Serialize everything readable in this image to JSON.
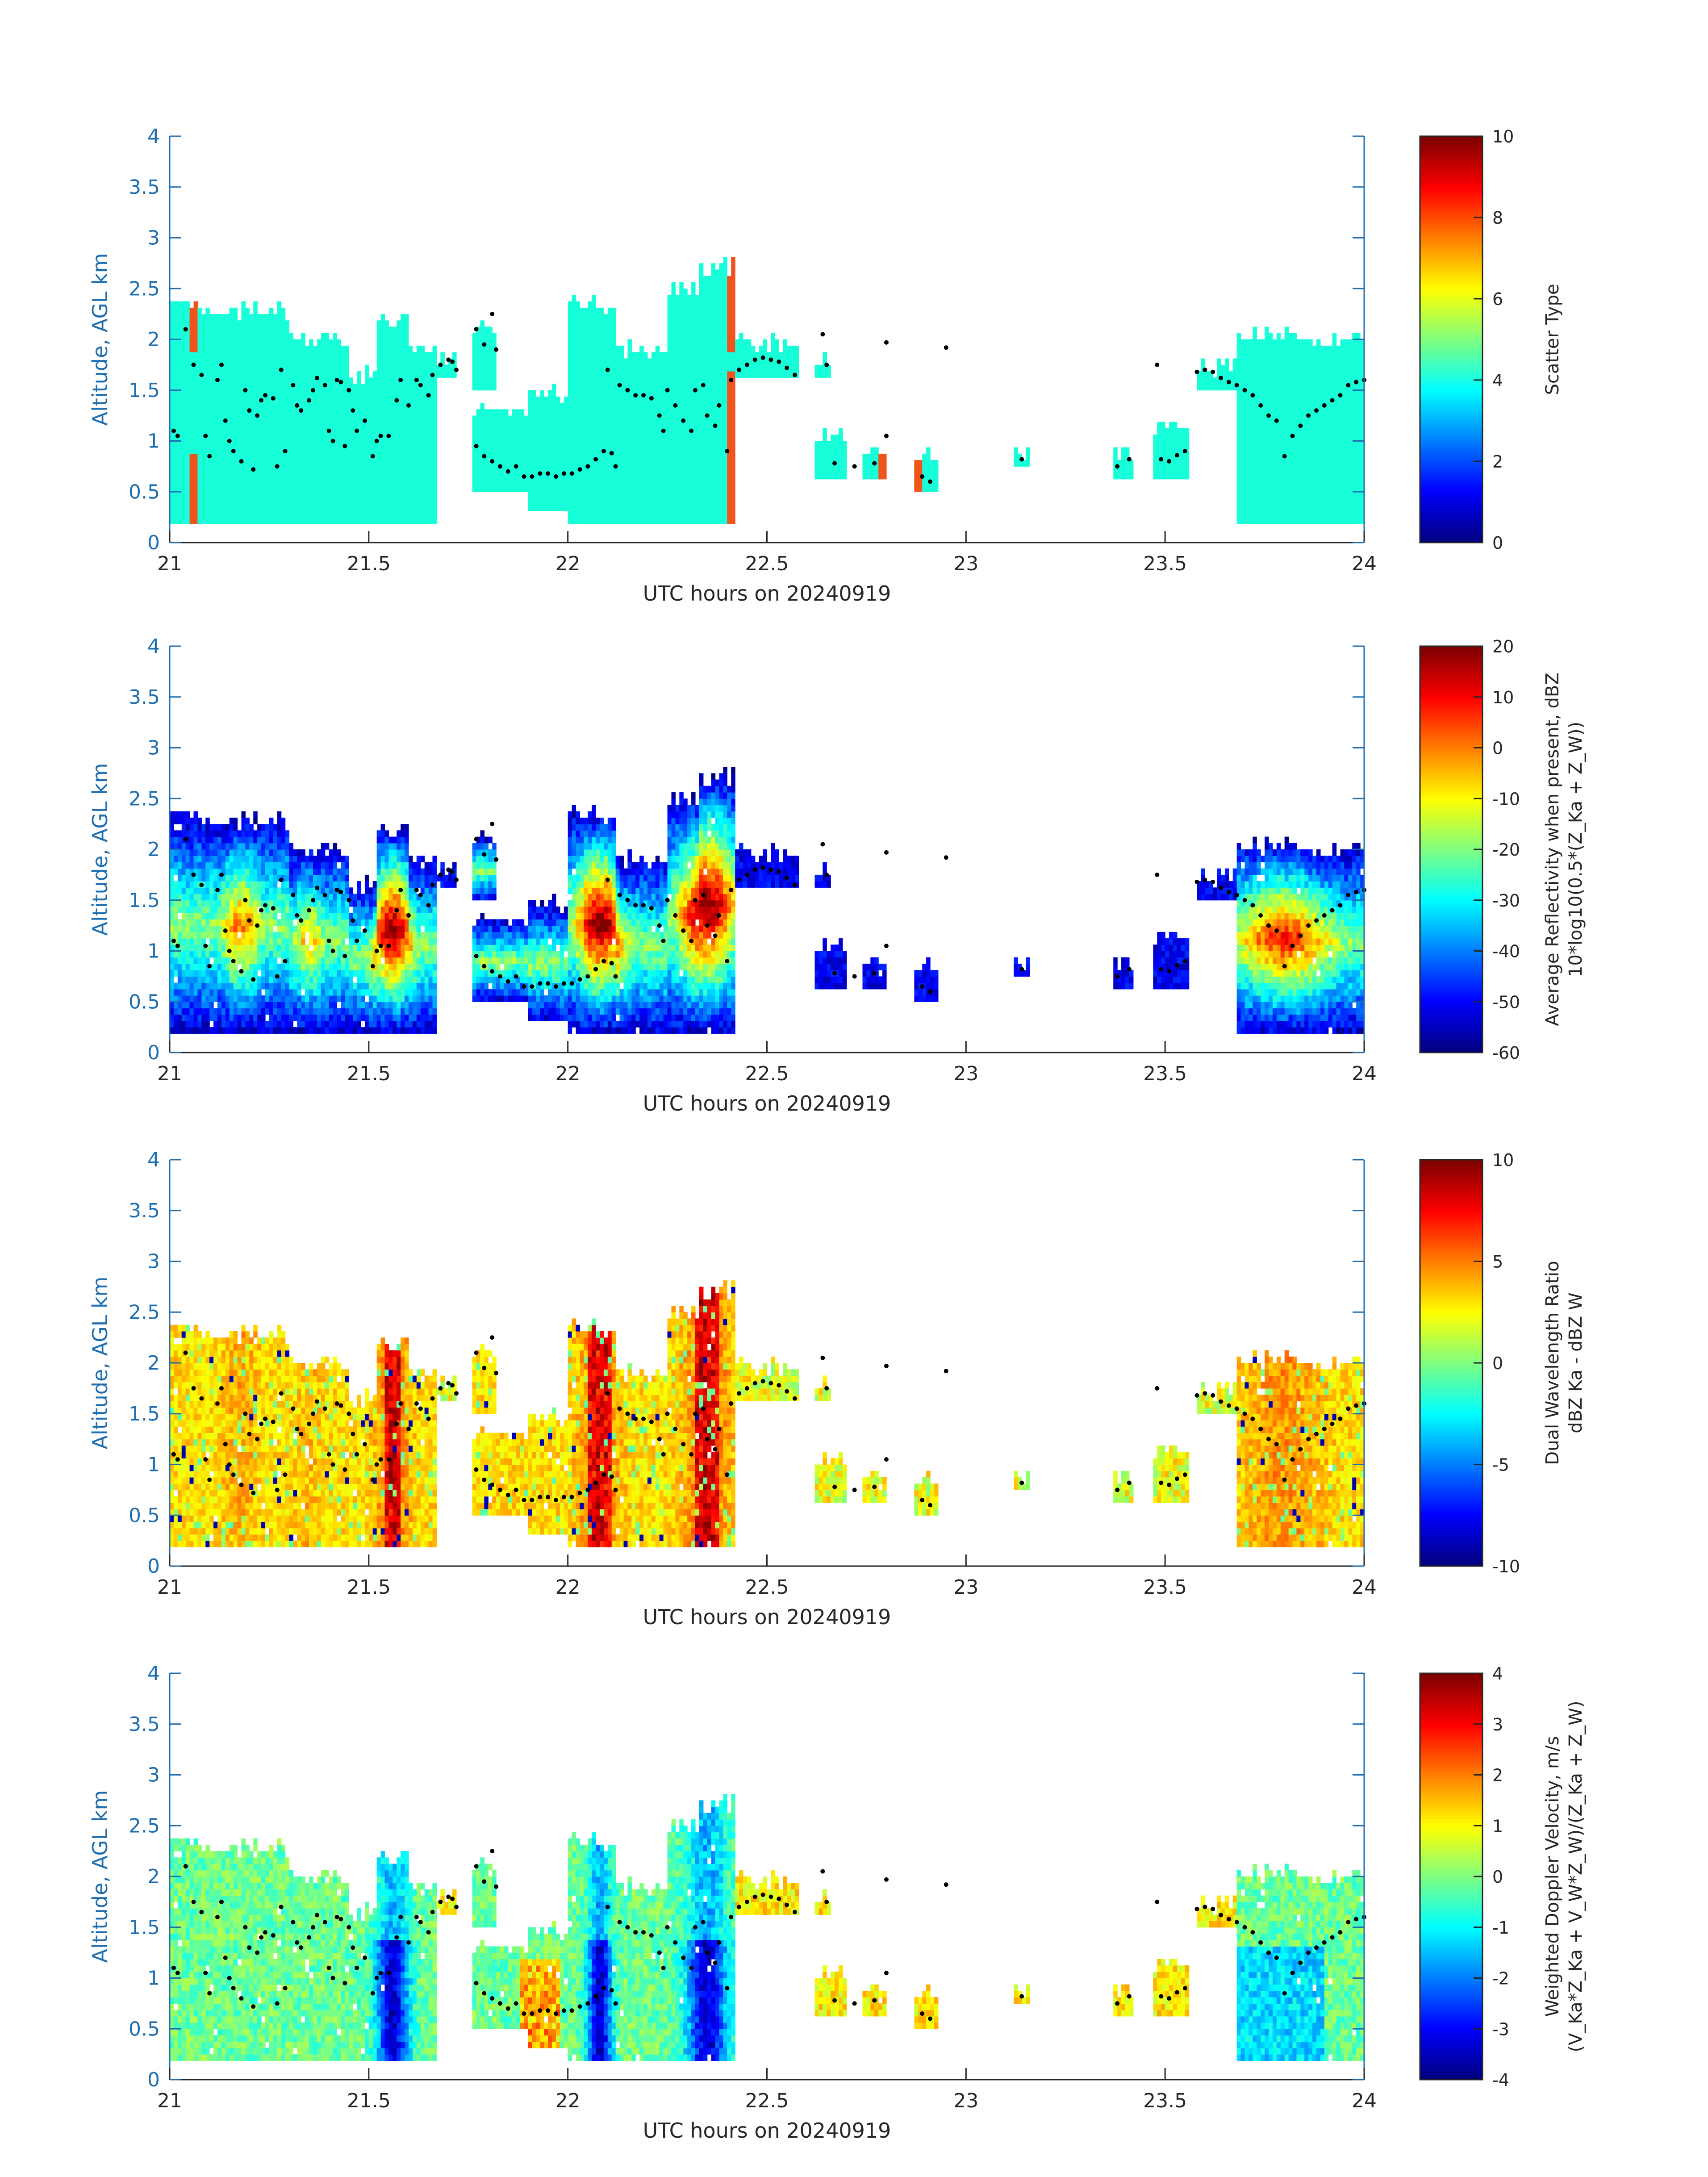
{
  "colors": {
    "axis": "#262626",
    "y_axis": "#1f6fb0",
    "dots": "#000000",
    "scatter_cloud": "#17ffd9",
    "scatter_orange": "#f0541c"
  },
  "chart_data": [
    {
      "type": "heatmap",
      "xlabel": "UTC hours on 20240919",
      "ylabel": "Altitude, AGL km",
      "xlim": [
        21,
        24
      ],
      "ylim": [
        0,
        4
      ],
      "xticks": [
        "21",
        "21.5",
        "22",
        "22.5",
        "23",
        "23.5",
        "24"
      ],
      "yticks": [
        "0",
        "0.5",
        "1",
        "1.5",
        "2",
        "2.5",
        "3",
        "3.5",
        "4"
      ],
      "colorbar": {
        "label_lines": [
          "Scatter Type"
        ],
        "range": [
          0,
          10
        ],
        "ticks": [
          "0",
          "2",
          "4",
          "6",
          "8",
          "10"
        ]
      }
    },
    {
      "type": "heatmap",
      "xlabel": "UTC hours on 20240919",
      "ylabel": "Altitude, AGL km",
      "xlim": [
        21,
        24
      ],
      "ylim": [
        0,
        4
      ],
      "xticks": [
        "21",
        "21.5",
        "22",
        "22.5",
        "23",
        "23.5",
        "24"
      ],
      "yticks": [
        "0",
        "0.5",
        "1",
        "1.5",
        "2",
        "2.5",
        "3",
        "3.5",
        "4"
      ],
      "colorbar": {
        "label_lines": [
          "Average Reflectivity when present, dBZ",
          "10*log10(0.5*(Z_Ka + Z_W))"
        ],
        "range": [
          -60,
          20
        ],
        "ticks": [
          "-60",
          "-50",
          "-40",
          "-30",
          "-20",
          "-10",
          "0",
          "10",
          "20"
        ]
      }
    },
    {
      "type": "heatmap",
      "xlabel": "UTC hours on 20240919",
      "ylabel": "Altitude, AGL km",
      "xlim": [
        21,
        24
      ],
      "ylim": [
        0,
        4
      ],
      "xticks": [
        "21",
        "21.5",
        "22",
        "22.5",
        "23",
        "23.5",
        "24"
      ],
      "yticks": [
        "0",
        "0.5",
        "1",
        "1.5",
        "2",
        "2.5",
        "3",
        "3.5",
        "4"
      ],
      "colorbar": {
        "label_lines": [
          "Dual Wavelength Ratio",
          "dBZ Ka - dBZ W"
        ],
        "range": [
          -10,
          10
        ],
        "ticks": [
          "-10",
          "-5",
          "0",
          "5",
          "10"
        ]
      }
    },
    {
      "type": "heatmap",
      "xlabel": "UTC hours on 20240919",
      "ylabel": "Altitude, AGL km",
      "xlim": [
        21,
        24
      ],
      "ylim": [
        0,
        4
      ],
      "xticks": [
        "21",
        "21.5",
        "22",
        "22.5",
        "23",
        "23.5",
        "24"
      ],
      "yticks": [
        "0",
        "0.5",
        "1",
        "1.5",
        "2",
        "2.5",
        "3",
        "3.5",
        "4"
      ],
      "colorbar": {
        "label_lines": [
          "Weighted Doppler Velocity, m/s",
          "(V_Ka*Z_Ka + V_W*Z_W)/(Z_Ka + Z_W)"
        ],
        "range": [
          -4,
          4
        ],
        "ticks": [
          "-4",
          "-3",
          "-2",
          "-1",
          "0",
          "1",
          "2",
          "3",
          "4"
        ]
      }
    }
  ],
  "echo_regions": [
    {
      "x0": 21.0,
      "x1": 21.08,
      "top": 2.3,
      "base": 0.2
    },
    {
      "x0": 21.08,
      "x1": 21.3,
      "top": 2.28,
      "base": 0.2
    },
    {
      "x0": 21.3,
      "x1": 21.45,
      "top": 2.0,
      "base": 0.2
    },
    {
      "x0": 21.45,
      "x1": 21.52,
      "top": 1.65,
      "base": 0.2
    },
    {
      "x0": 21.52,
      "x1": 21.6,
      "top": 2.2,
      "base": 0.2
    },
    {
      "x0": 21.6,
      "x1": 21.67,
      "top": 1.9,
      "base": 0.2
    },
    {
      "x0": 21.67,
      "x1": 21.72,
      "top": 1.8,
      "base": 1.6
    },
    {
      "x0": 21.76,
      "x1": 21.82,
      "top": 2.1,
      "base": 1.5
    },
    {
      "x0": 21.76,
      "x1": 21.9,
      "top": 1.3,
      "base": 0.5
    },
    {
      "x0": 21.9,
      "x1": 22.0,
      "top": 1.45,
      "base": 0.3
    },
    {
      "x0": 22.0,
      "x1": 22.12,
      "top": 2.35,
      "base": 0.2
    },
    {
      "x0": 22.12,
      "x1": 22.25,
      "top": 1.9,
      "base": 0.2
    },
    {
      "x0": 22.25,
      "x1": 22.33,
      "top": 2.5,
      "base": 0.2
    },
    {
      "x0": 22.33,
      "x1": 22.42,
      "top": 2.7,
      "base": 0.2
    },
    {
      "x0": 22.42,
      "x1": 22.58,
      "top": 1.95,
      "base": 1.6
    },
    {
      "x0": 22.62,
      "x1": 22.66,
      "top": 1.8,
      "base": 1.65
    },
    {
      "x0": 22.62,
      "x1": 22.7,
      "top": 1.05,
      "base": 0.6
    },
    {
      "x0": 22.74,
      "x1": 22.8,
      "top": 0.9,
      "base": 0.6
    },
    {
      "x0": 22.87,
      "x1": 22.93,
      "top": 0.85,
      "base": 0.5
    },
    {
      "x0": 23.12,
      "x1": 23.16,
      "top": 0.88,
      "base": 0.78
    },
    {
      "x0": 23.37,
      "x1": 23.42,
      "top": 0.88,
      "base": 0.62
    },
    {
      "x0": 23.47,
      "x1": 23.56,
      "top": 1.15,
      "base": 0.65
    },
    {
      "x0": 23.58,
      "x1": 23.68,
      "top": 1.72,
      "base": 1.5
    },
    {
      "x0": 23.68,
      "x1": 23.85,
      "top": 2.05,
      "base": 0.2
    },
    {
      "x0": 23.85,
      "x1": 24.0,
      "top": 2.0,
      "base": 0.2
    }
  ],
  "melting_layer_dots": [
    [
      21.01,
      1.1
    ],
    [
      21.02,
      1.05
    ],
    [
      21.04,
      2.1
    ],
    [
      21.06,
      1.75
    ],
    [
      21.08,
      1.65
    ],
    [
      21.09,
      1.05
    ],
    [
      21.1,
      0.85
    ],
    [
      21.12,
      1.6
    ],
    [
      21.13,
      1.75
    ],
    [
      21.14,
      1.2
    ],
    [
      21.15,
      1.0
    ],
    [
      21.16,
      0.9
    ],
    [
      21.18,
      0.8
    ],
    [
      21.19,
      1.5
    ],
    [
      21.2,
      1.3
    ],
    [
      21.21,
      0.72
    ],
    [
      21.22,
      1.25
    ],
    [
      21.23,
      1.4
    ],
    [
      21.24,
      1.45
    ],
    [
      21.26,
      1.42
    ],
    [
      21.27,
      0.75
    ],
    [
      21.28,
      1.7
    ],
    [
      21.29,
      0.9
    ],
    [
      21.31,
      1.55
    ],
    [
      21.32,
      1.35
    ],
    [
      21.33,
      1.3
    ],
    [
      21.35,
      1.4
    ],
    [
      21.36,
      1.5
    ],
    [
      21.37,
      1.62
    ],
    [
      21.39,
      1.55
    ],
    [
      21.4,
      1.1
    ],
    [
      21.41,
      1.0
    ],
    [
      21.42,
      1.6
    ],
    [
      21.43,
      1.58
    ],
    [
      21.44,
      0.95
    ],
    [
      21.45,
      1.5
    ],
    [
      21.46,
      1.3
    ],
    [
      21.47,
      1.1
    ],
    [
      21.49,
      1.2
    ],
    [
      21.51,
      0.85
    ],
    [
      21.52,
      1.0
    ],
    [
      21.53,
      1.05
    ],
    [
      21.55,
      1.05
    ],
    [
      21.57,
      1.4
    ],
    [
      21.58,
      1.6
    ],
    [
      21.6,
      1.35
    ],
    [
      21.62,
      1.6
    ],
    [
      21.63,
      1.55
    ],
    [
      21.65,
      1.45
    ],
    [
      21.66,
      1.65
    ],
    [
      21.68,
      1.75
    ],
    [
      21.7,
      1.8
    ],
    [
      21.71,
      1.78
    ],
    [
      21.72,
      1.7
    ],
    [
      21.77,
      2.1
    ],
    [
      21.79,
      1.95
    ],
    [
      21.81,
      2.25
    ],
    [
      21.82,
      1.9
    ],
    [
      21.77,
      0.95
    ],
    [
      21.79,
      0.85
    ],
    [
      21.81,
      0.8
    ],
    [
      21.83,
      0.75
    ],
    [
      21.85,
      0.7
    ],
    [
      21.87,
      0.75
    ],
    [
      21.89,
      0.65
    ],
    [
      21.91,
      0.65
    ],
    [
      21.93,
      0.68
    ],
    [
      21.95,
      0.68
    ],
    [
      21.97,
      0.65
    ],
    [
      21.99,
      0.68
    ],
    [
      22.01,
      0.68
    ],
    [
      22.03,
      0.72
    ],
    [
      22.05,
      0.75
    ],
    [
      22.07,
      0.82
    ],
    [
      22.09,
      0.9
    ],
    [
      22.11,
      0.88
    ],
    [
      22.12,
      0.75
    ],
    [
      22.1,
      1.7
    ],
    [
      22.13,
      1.55
    ],
    [
      22.15,
      1.5
    ],
    [
      22.17,
      1.45
    ],
    [
      22.19,
      1.45
    ],
    [
      22.21,
      1.42
    ],
    [
      22.23,
      1.25
    ],
    [
      22.24,
      1.1
    ],
    [
      22.25,
      1.5
    ],
    [
      22.27,
      1.35
    ],
    [
      22.29,
      1.2
    ],
    [
      22.31,
      1.1
    ],
    [
      22.32,
      1.5
    ],
    [
      22.34,
      1.55
    ],
    [
      22.35,
      1.25
    ],
    [
      22.37,
      1.15
    ],
    [
      22.38,
      1.35
    ],
    [
      22.4,
      0.9
    ],
    [
      22.41,
      1.6
    ],
    [
      22.43,
      1.7
    ],
    [
      22.45,
      1.75
    ],
    [
      22.47,
      1.8
    ],
    [
      22.49,
      1.82
    ],
    [
      22.51,
      1.8
    ],
    [
      22.53,
      1.78
    ],
    [
      22.55,
      1.72
    ],
    [
      22.57,
      1.65
    ],
    [
      22.65,
      1.75
    ],
    [
      22.64,
      2.05
    ],
    [
      22.8,
      1.97
    ],
    [
      22.95,
      1.92
    ],
    [
      22.67,
      0.78
    ],
    [
      22.72,
      0.75
    ],
    [
      22.77,
      0.78
    ],
    [
      22.8,
      1.05
    ],
    [
      22.89,
      0.65
    ],
    [
      22.91,
      0.6
    ],
    [
      23.14,
      0.82
    ],
    [
      23.38,
      0.75
    ],
    [
      23.41,
      0.82
    ],
    [
      23.48,
      1.75
    ],
    [
      23.49,
      0.82
    ],
    [
      23.51,
      0.8
    ],
    [
      23.53,
      0.86
    ],
    [
      23.55,
      0.9
    ],
    [
      23.58,
      1.68
    ],
    [
      23.6,
      1.7
    ],
    [
      23.62,
      1.68
    ],
    [
      23.64,
      1.62
    ],
    [
      23.66,
      1.58
    ],
    [
      23.68,
      1.55
    ],
    [
      23.7,
      1.5
    ],
    [
      23.72,
      1.45
    ],
    [
      23.74,
      1.35
    ],
    [
      23.76,
      1.25
    ],
    [
      23.78,
      1.2
    ],
    [
      23.8,
      0.85
    ],
    [
      23.82,
      1.05
    ],
    [
      23.84,
      1.15
    ],
    [
      23.86,
      1.25
    ],
    [
      23.88,
      1.3
    ],
    [
      23.9,
      1.35
    ],
    [
      23.92,
      1.4
    ],
    [
      23.94,
      1.45
    ],
    [
      23.96,
      1.55
    ],
    [
      23.98,
      1.58
    ],
    [
      24.0,
      1.6
    ]
  ]
}
